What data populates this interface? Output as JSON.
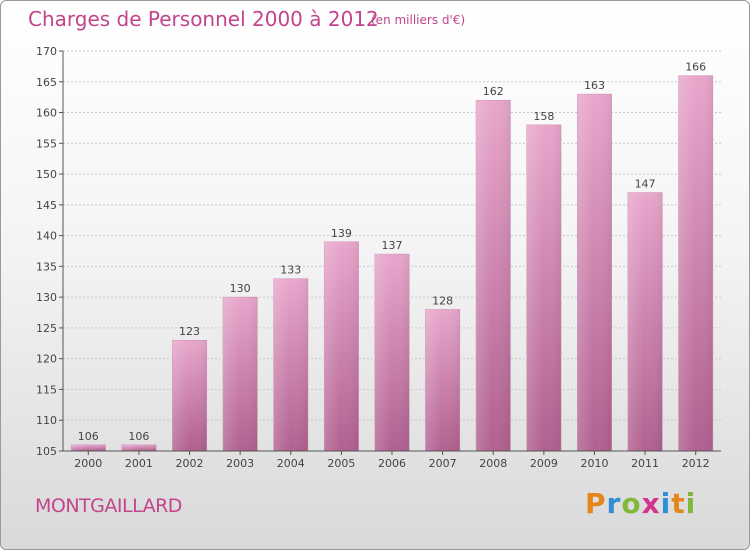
{
  "header": {
    "title": "Charges de Personnel 2000 à 2012",
    "subtitle": "(en milliers d'€)"
  },
  "footer": {
    "place": "MONTGAILLARD",
    "logo_letters": [
      "P",
      "r",
      "o",
      "x",
      "i",
      "t",
      "i"
    ]
  },
  "colors": {
    "bar_top": "#e8a7cc",
    "bar_bottom": "#b0608f",
    "text_accent": "#c2458c"
  },
  "chart_data": {
    "type": "bar",
    "title": "Charges de Personnel 2000 à 2012",
    "subtitle": "(en milliers d'€)",
    "categories": [
      "2000",
      "2001",
      "2002",
      "2003",
      "2004",
      "2005",
      "2006",
      "2007",
      "2008",
      "2009",
      "2010",
      "2011",
      "2012"
    ],
    "values": [
      106,
      106,
      123,
      130,
      133,
      139,
      137,
      128,
      162,
      158,
      163,
      147,
      166
    ],
    "ylim": [
      105,
      170
    ],
    "yticks": [
      105,
      110,
      115,
      120,
      125,
      130,
      135,
      140,
      145,
      150,
      155,
      160,
      165,
      170
    ],
    "grid": true,
    "data_labels": true
  }
}
